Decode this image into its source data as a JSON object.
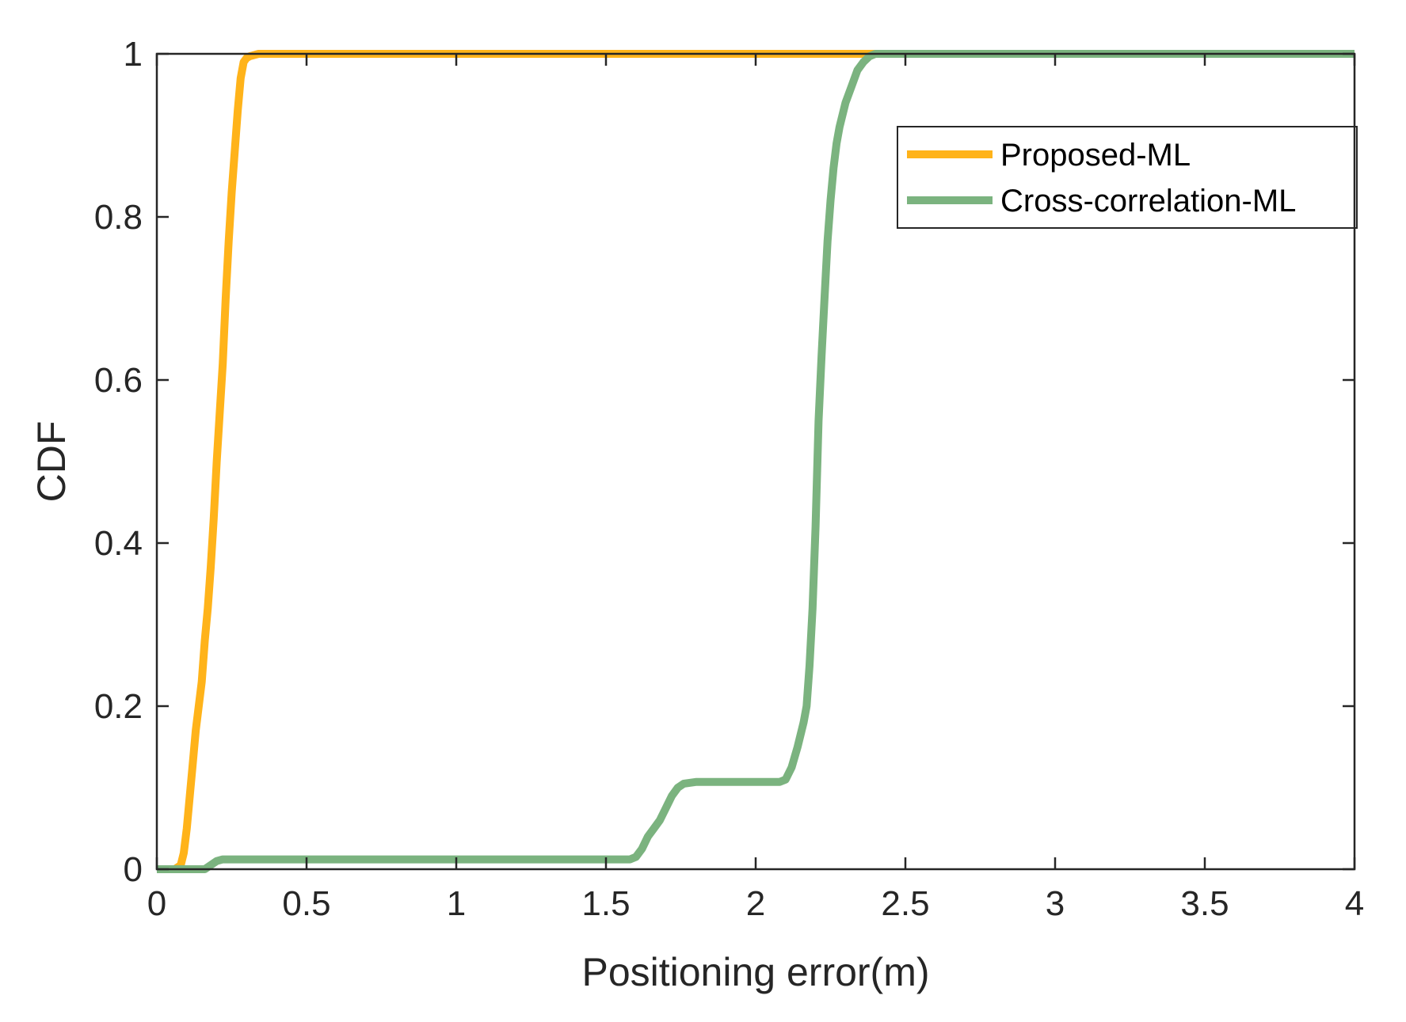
{
  "chart_data": {
    "type": "line",
    "title": "",
    "xlabel": "Positioning error(m)",
    "ylabel": "CDF",
    "xlim": [
      0,
      4
    ],
    "ylim": [
      0,
      1
    ],
    "xticks": [
      0,
      0.5,
      1,
      1.5,
      2,
      2.5,
      3,
      3.5,
      4
    ],
    "xtick_labels": [
      "0",
      "0.5",
      "1",
      "1.5",
      "2",
      "2.5",
      "3",
      "3.5",
      "4"
    ],
    "yticks": [
      0,
      0.2,
      0.4,
      0.6,
      0.8,
      1
    ],
    "ytick_labels": [
      "0",
      "0.2",
      "0.4",
      "0.6",
      "0.8",
      "1"
    ],
    "grid": false,
    "legend_position": "top-right",
    "series": [
      {
        "name": "Proposed-ML",
        "color": "#FFB31A",
        "x": [
          0,
          0.06,
          0.08,
          0.09,
          0.1,
          0.11,
          0.12,
          0.13,
          0.14,
          0.15,
          0.16,
          0.17,
          0.18,
          0.19,
          0.2,
          0.21,
          0.22,
          0.23,
          0.24,
          0.25,
          0.26,
          0.27,
          0.28,
          0.29,
          0.3,
          0.31,
          0.32,
          0.33,
          0.34,
          0.36,
          0.4,
          2.4,
          4
        ],
        "y": [
          0,
          0,
          0.005,
          0.02,
          0.05,
          0.09,
          0.13,
          0.17,
          0.2,
          0.23,
          0.28,
          0.32,
          0.37,
          0.43,
          0.5,
          0.56,
          0.62,
          0.7,
          0.77,
          0.83,
          0.88,
          0.93,
          0.97,
          0.99,
          0.995,
          0.997,
          0.998,
          0.999,
          1,
          1,
          1,
          1,
          1
        ]
      },
      {
        "name": "Cross-correlation-ML",
        "color": "#7BB37F",
        "x": [
          0,
          0.16,
          0.18,
          0.2,
          0.22,
          0.5,
          1.0,
          1.5,
          1.58,
          1.6,
          1.62,
          1.64,
          1.66,
          1.68,
          1.7,
          1.72,
          1.74,
          1.76,
          1.8,
          1.9,
          2.0,
          2.08,
          2.1,
          2.12,
          2.14,
          2.16,
          2.17,
          2.18,
          2.19,
          2.2,
          2.21,
          2.22,
          2.23,
          2.24,
          2.25,
          2.26,
          2.27,
          2.28,
          2.3,
          2.32,
          2.34,
          2.36,
          2.38,
          2.4,
          2.5,
          3,
          3.5,
          4
        ],
        "y": [
          0,
          0,
          0.005,
          0.01,
          0.012,
          0.012,
          0.012,
          0.012,
          0.012,
          0.015,
          0.025,
          0.04,
          0.05,
          0.06,
          0.075,
          0.09,
          0.1,
          0.105,
          0.107,
          0.107,
          0.107,
          0.107,
          0.11,
          0.125,
          0.15,
          0.18,
          0.2,
          0.25,
          0.32,
          0.42,
          0.55,
          0.63,
          0.7,
          0.77,
          0.82,
          0.86,
          0.89,
          0.91,
          0.94,
          0.96,
          0.98,
          0.99,
          0.997,
          1,
          1,
          1,
          1,
          1
        ]
      }
    ]
  }
}
